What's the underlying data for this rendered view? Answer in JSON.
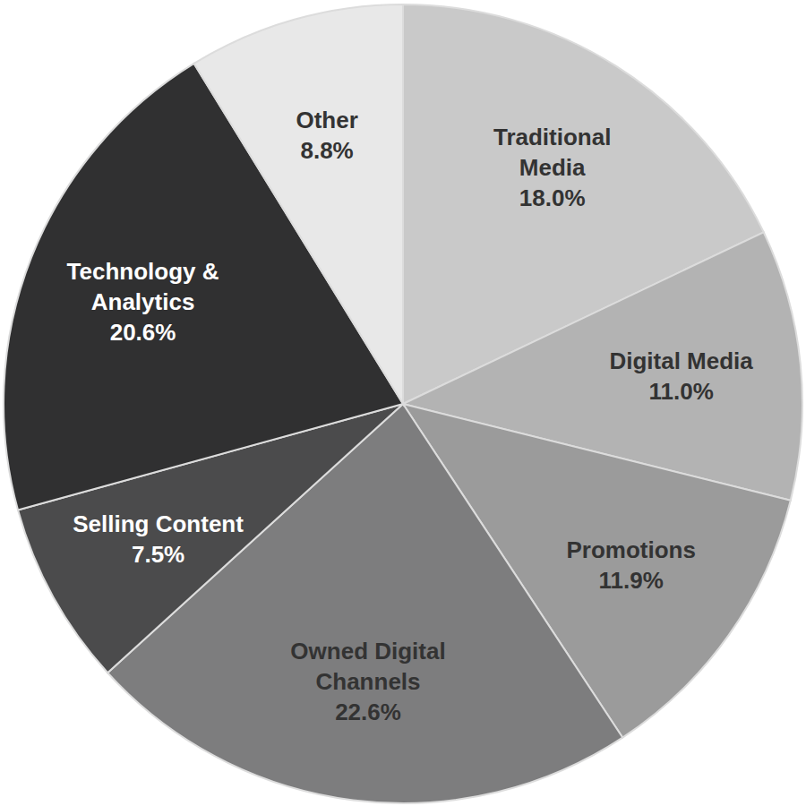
{
  "chart_data": {
    "type": "pie",
    "categories": [
      "Traditional Media",
      "Digital Media",
      "Promotions",
      "Owned Digital Channels",
      "Selling Content",
      "Technology & Analytics",
      "Other"
    ],
    "values": [
      18.0,
      11.0,
      11.9,
      22.6,
      7.5,
      20.6,
      8.8
    ],
    "value_labels": [
      "18.0%",
      "11.0%",
      "11.9%",
      "22.6%",
      "7.5%",
      "20.6%",
      "8.8%"
    ],
    "colors": [
      "#c9c9c9",
      "#b3b3b3",
      "#9b9b9b",
      "#7d7d7e",
      "#4b4b4c",
      "#303031",
      "#e8e8e8"
    ],
    "data_labels": true
  }
}
